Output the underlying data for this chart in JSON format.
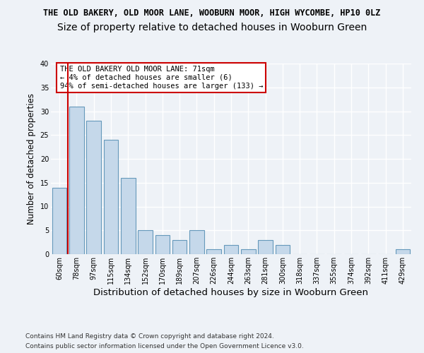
{
  "title": "THE OLD BAKERY, OLD MOOR LANE, WOOBURN MOOR, HIGH WYCOMBE, HP10 0LZ",
  "subtitle": "Size of property relative to detached houses in Wooburn Green",
  "xlabel": "Distribution of detached houses by size in Wooburn Green",
  "ylabel": "Number of detached properties",
  "categories": [
    "60sqm",
    "78sqm",
    "97sqm",
    "115sqm",
    "134sqm",
    "152sqm",
    "170sqm",
    "189sqm",
    "207sqm",
    "226sqm",
    "244sqm",
    "263sqm",
    "281sqm",
    "300sqm",
    "318sqm",
    "337sqm",
    "355sqm",
    "374sqm",
    "392sqm",
    "411sqm",
    "429sqm"
  ],
  "values": [
    14,
    31,
    28,
    24,
    16,
    5,
    4,
    3,
    5,
    1,
    2,
    1,
    3,
    2,
    0,
    0,
    0,
    0,
    0,
    0,
    1
  ],
  "bar_color": "#c5d8ea",
  "bar_edge_color": "#6699bb",
  "highlight_line_color": "#cc0000",
  "annotation_text": "THE OLD BAKERY OLD MOOR LANE: 71sqm\n← 4% of detached houses are smaller (6)\n94% of semi-detached houses are larger (133) →",
  "annotation_box_color": "#ffffff",
  "annotation_box_edge_color": "#cc0000",
  "ylim": [
    0,
    40
  ],
  "yticks": [
    0,
    5,
    10,
    15,
    20,
    25,
    30,
    35,
    40
  ],
  "footer_line1": "Contains HM Land Registry data © Crown copyright and database right 2024.",
  "footer_line2": "Contains public sector information licensed under the Open Government Licence v3.0.",
  "bg_color": "#eef2f7",
  "plot_bg_color": "#eef2f7",
  "grid_color": "#ffffff",
  "title_fontsize": 8.5,
  "subtitle_fontsize": 10,
  "xlabel_fontsize": 9.5,
  "ylabel_fontsize": 8.5,
  "tick_fontsize": 7,
  "footer_fontsize": 6.5,
  "annotation_fontsize": 7.5
}
